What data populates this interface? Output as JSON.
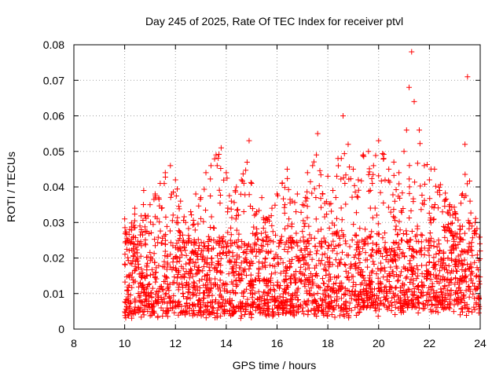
{
  "chart_data": {
    "type": "scatter",
    "title": "Day 245 of 2025, Rate Of TEC Index for receiver ptvl",
    "xlabel": "GPS time / hours",
    "ylabel": "ROTI / TECUs",
    "xlim": [
      8,
      24
    ],
    "ylim": [
      0,
      0.08
    ],
    "xticks": [
      "8",
      "10",
      "12",
      "14",
      "16",
      "18",
      "20",
      "22",
      "24"
    ],
    "yticks": [
      "0",
      "0.01",
      "0.02",
      "0.03",
      "0.04",
      "0.05",
      "0.06",
      "0.07",
      "0.08"
    ],
    "grid": true,
    "marker": "+",
    "series": [
      {
        "name": "ROTI",
        "color": "#ff0000",
        "x": [
          10.0,
          10.2,
          10.4,
          10.6,
          10.75,
          10.8,
          11.0,
          11.2,
          11.4,
          11.45,
          11.6,
          11.8,
          11.85,
          12.0,
          12.2,
          12.4,
          12.6,
          12.8,
          13.0,
          13.2,
          13.4,
          13.6,
          13.8,
          14.0,
          14.2,
          14.4,
          14.6,
          14.9,
          15.0,
          15.2,
          15.4,
          15.6,
          15.8,
          16.0,
          16.2,
          16.4,
          16.6,
          16.8,
          17.0,
          17.2,
          17.4,
          17.55,
          17.6,
          17.8,
          18.0,
          18.2,
          18.4,
          18.6,
          18.8,
          19.0,
          19.2,
          19.4,
          19.6,
          19.8,
          20.0,
          20.2,
          20.4,
          20.6,
          20.8,
          21.0,
          21.1,
          21.2,
          21.3,
          21.4,
          21.6,
          21.8,
          22.0,
          22.2,
          22.4,
          22.6,
          22.8,
          23.0,
          23.2,
          23.4,
          23.5,
          23.6,
          23.8,
          24.0
        ],
        "y": [
          0.031,
          0.028,
          0.034,
          0.029,
          0.039,
          0.032,
          0.035,
          0.038,
          0.041,
          0.034,
          0.044,
          0.046,
          0.038,
          0.042,
          0.036,
          0.03,
          0.033,
          0.038,
          0.037,
          0.044,
          0.046,
          0.049,
          0.051,
          0.044,
          0.036,
          0.04,
          0.042,
          0.053,
          0.041,
          0.033,
          0.037,
          0.031,
          0.034,
          0.038,
          0.041,
          0.045,
          0.036,
          0.038,
          0.035,
          0.044,
          0.046,
          0.049,
          0.055,
          0.038,
          0.043,
          0.039,
          0.048,
          0.06,
          0.052,
          0.045,
          0.042,
          0.049,
          0.05,
          0.046,
          0.053,
          0.048,
          0.045,
          0.047,
          0.044,
          0.05,
          0.056,
          0.068,
          0.078,
          0.064,
          0.056,
          0.046,
          0.042,
          0.045,
          0.039,
          0.036,
          0.035,
          0.033,
          0.029,
          0.052,
          0.071,
          0.036,
          0.03,
          0.022
        ]
      }
    ],
    "band": {
      "description": "dense cloud of ROTI points between 10 and 24 h, mostly 0.003 to 0.03 TECU/s",
      "typical_min": 0.003,
      "typical_max": 0.03
    }
  }
}
